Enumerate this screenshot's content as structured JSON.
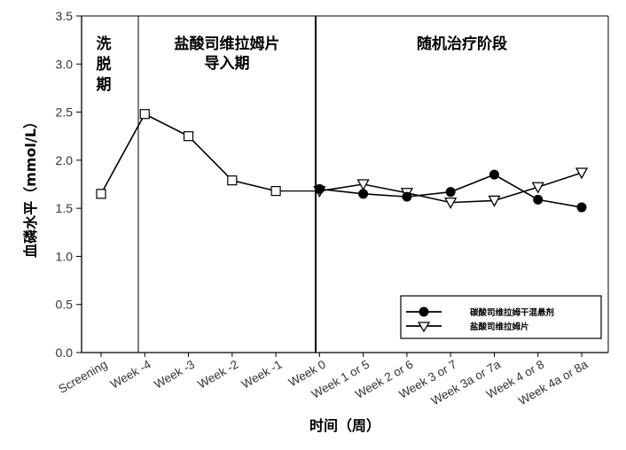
{
  "chart_data": {
    "type": "line",
    "xlabel": "时间（周）",
    "ylabel": "血磷水平（mmol/L）",
    "ylim": [
      0,
      3.5
    ],
    "yticks": [
      "0.0",
      "0.5",
      "1.0",
      "1.5",
      "2.0",
      "2.5",
      "3.0",
      "3.5"
    ],
    "categories": [
      "Screening",
      "Week -4",
      "Week -3",
      "Week -2",
      "Week -1",
      "Week 0",
      "Week 1 or 5",
      "Week 2 or 6",
      "Week 3 or 7",
      "Week 3a or 7a",
      "Week 4 or 8",
      "Week 4a or 8a"
    ],
    "phases": [
      {
        "lines": [
          "洗",
          "脱",
          "期"
        ]
      },
      {
        "lines": [
          "盐酸司维拉姆片",
          "导入期"
        ]
      },
      {
        "lines": [
          "随机治疗阶段"
        ]
      }
    ],
    "series": [
      {
        "name": "碳酸司维拉姆干混悬剂",
        "marker": "filled-circle",
        "color": "#000000",
        "values": [
          null,
          null,
          null,
          null,
          null,
          1.7,
          1.65,
          1.62,
          1.67,
          1.85,
          1.59,
          1.51
        ]
      },
      {
        "name": "盐酸司维拉姆片",
        "marker": "open-triangle-down",
        "color": "#000000",
        "values": [
          null,
          null,
          null,
          null,
          null,
          1.68,
          1.75,
          1.66,
          1.56,
          1.58,
          1.72,
          1.87
        ]
      },
      {
        "marker": "open-square",
        "color": "#000000",
        "values": [
          1.65,
          2.48,
          2.25,
          1.79,
          1.68,
          null,
          null,
          null,
          null,
          null,
          null,
          null
        ]
      }
    ],
    "legend": "bottom-right",
    "grid": false
  }
}
